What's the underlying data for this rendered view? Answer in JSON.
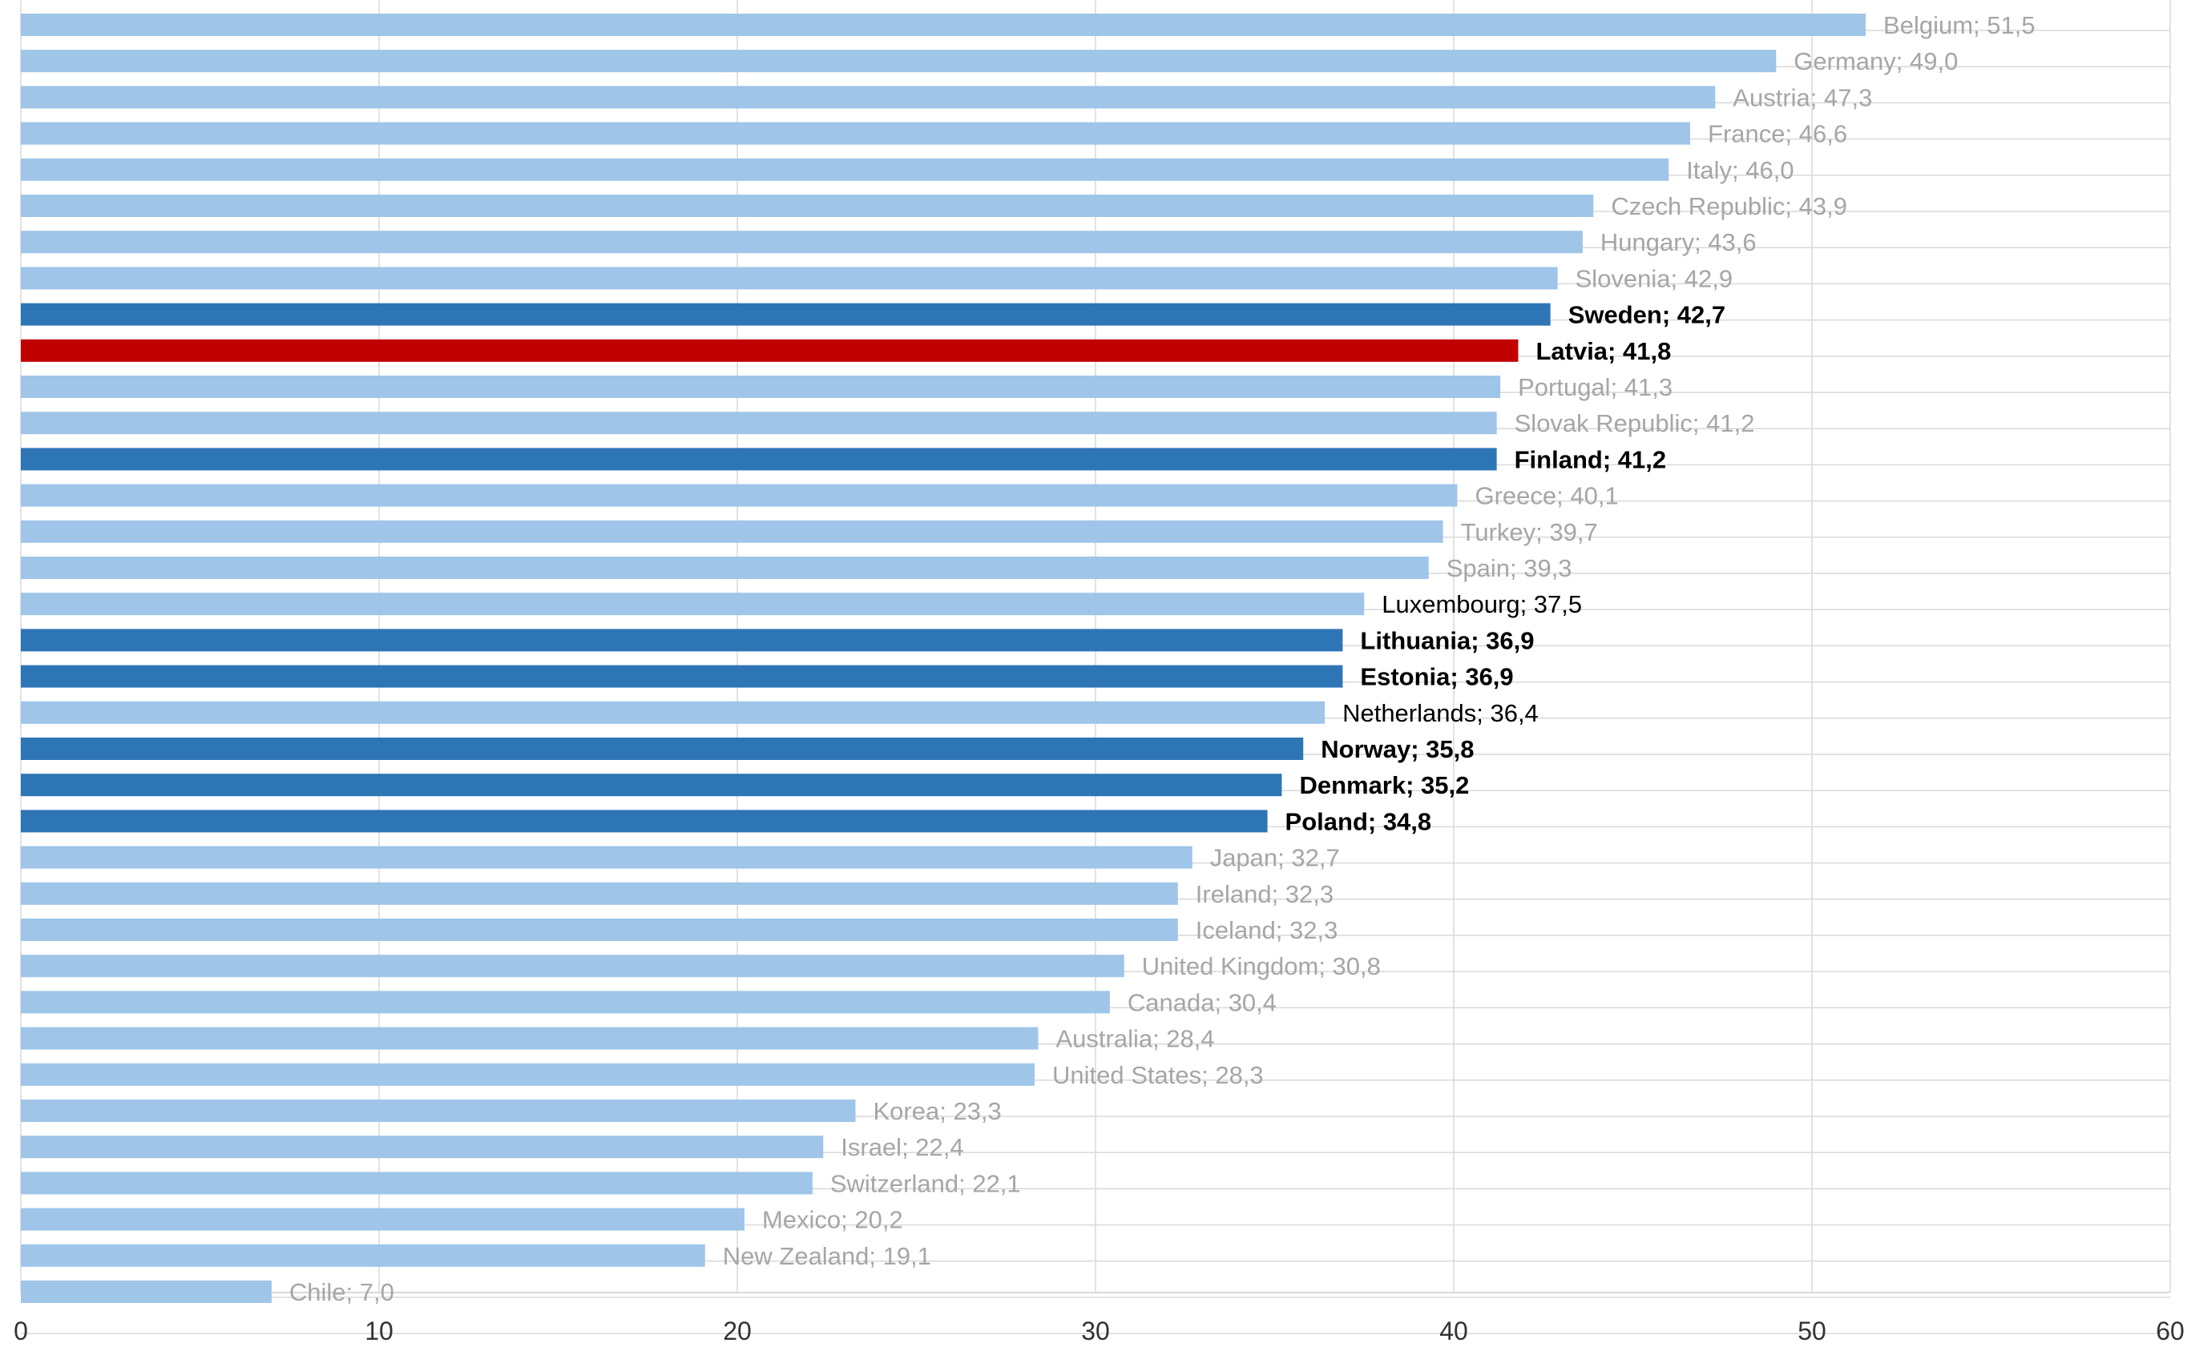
{
  "chart_data": {
    "type": "bar",
    "orientation": "horizontal",
    "xlim": [
      0,
      60
    ],
    "x_ticks": [
      0,
      10,
      20,
      30,
      40,
      50,
      60
    ],
    "x_tick_labels": [
      "0",
      "10",
      "20",
      "30",
      "40",
      "50",
      "60"
    ],
    "grid": true,
    "colors": {
      "default": "#9fc5e8",
      "highlight": "#2e75b6",
      "focus": "#c00000",
      "label_light": "#a6a6a6",
      "label_dark": "#000000",
      "grid": "#d9d9d9"
    },
    "bars": [
      {
        "category": "Belgium",
        "value": 51.5,
        "label": "Belgium; 51,5",
        "style": "default"
      },
      {
        "category": "Germany",
        "value": 49.0,
        "label": "Germany; 49,0",
        "style": "default"
      },
      {
        "category": "Austria",
        "value": 47.3,
        "label": "Austria; 47,3",
        "style": "default"
      },
      {
        "category": "France",
        "value": 46.6,
        "label": "France; 46,6",
        "style": "default"
      },
      {
        "category": "Italy",
        "value": 46.0,
        "label": "Italy; 46,0",
        "style": "default"
      },
      {
        "category": "Czech Republic",
        "value": 43.9,
        "label": "Czech Republic; 43,9",
        "style": "default"
      },
      {
        "category": "Hungary",
        "value": 43.6,
        "label": "Hungary; 43,6",
        "style": "default"
      },
      {
        "category": "Slovenia",
        "value": 42.9,
        "label": "Slovenia; 42,9",
        "style": "default"
      },
      {
        "category": "Sweden",
        "value": 42.7,
        "label": "Sweden; 42,7",
        "style": "highlight"
      },
      {
        "category": "Latvia",
        "value": 41.8,
        "label": "Latvia; 41,8",
        "style": "focus"
      },
      {
        "category": "Portugal",
        "value": 41.3,
        "label": "Portugal; 41,3",
        "style": "default"
      },
      {
        "category": "Slovak Republic",
        "value": 41.2,
        "label": "Slovak Republic; 41,2",
        "style": "default"
      },
      {
        "category": "Finland",
        "value": 41.2,
        "label": "Finland; 41,2",
        "style": "highlight"
      },
      {
        "category": "Greece",
        "value": 40.1,
        "label": "Greece; 40,1",
        "style": "default"
      },
      {
        "category": "Turkey",
        "value": 39.7,
        "label": "Turkey; 39,7",
        "style": "default"
      },
      {
        "category": "Spain",
        "value": 39.3,
        "label": "Spain; 39,3",
        "style": "default"
      },
      {
        "category": "Luxembourg",
        "value": 37.5,
        "label": "Luxembourg; 37,5",
        "style": "dark-label"
      },
      {
        "category": "Lithuania",
        "value": 36.9,
        "label": "Lithuania; 36,9",
        "style": "highlight"
      },
      {
        "category": "Estonia",
        "value": 36.9,
        "label": "Estonia; 36,9",
        "style": "highlight"
      },
      {
        "category": "Netherlands",
        "value": 36.4,
        "label": "Netherlands; 36,4",
        "style": "dark-label"
      },
      {
        "category": "Norway",
        "value": 35.8,
        "label": "Norway; 35,8",
        "style": "highlight"
      },
      {
        "category": "Denmark",
        "value": 35.2,
        "label": "Denmark; 35,2",
        "style": "highlight"
      },
      {
        "category": "Poland",
        "value": 34.8,
        "label": "Poland; 34,8",
        "style": "highlight"
      },
      {
        "category": "Japan",
        "value": 32.7,
        "label": "Japan; 32,7",
        "style": "default"
      },
      {
        "category": "Ireland",
        "value": 32.3,
        "label": "Ireland; 32,3",
        "style": "default"
      },
      {
        "category": "Iceland",
        "value": 32.3,
        "label": "Iceland; 32,3",
        "style": "default"
      },
      {
        "category": "United Kingdom",
        "value": 30.8,
        "label": "United Kingdom; 30,8",
        "style": "default"
      },
      {
        "category": "Canada",
        "value": 30.4,
        "label": "Canada; 30,4",
        "style": "default"
      },
      {
        "category": "Australia",
        "value": 28.4,
        "label": "Australia; 28,4",
        "style": "default"
      },
      {
        "category": "United States",
        "value": 28.3,
        "label": "United States; 28,3",
        "style": "default"
      },
      {
        "category": "Korea",
        "value": 23.3,
        "label": "Korea; 23,3",
        "style": "default"
      },
      {
        "category": "Israel",
        "value": 22.4,
        "label": "Israel; 22,4",
        "style": "default"
      },
      {
        "category": "Switzerland",
        "value": 22.1,
        "label": "Switzerland; 22,1",
        "style": "default"
      },
      {
        "category": "Mexico",
        "value": 20.2,
        "label": "Mexico; 20,2",
        "style": "default"
      },
      {
        "category": "New Zealand",
        "value": 19.1,
        "label": "New Zealand; 19,1",
        "style": "default"
      },
      {
        "category": "Chile",
        "value": 7.0,
        "label": "Chile; 7,0",
        "style": "default"
      }
    ]
  }
}
